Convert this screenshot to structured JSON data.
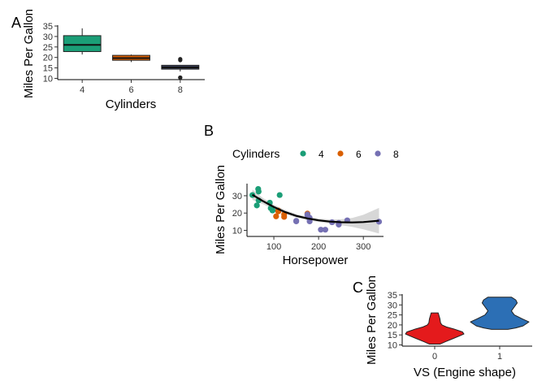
{
  "panels": {
    "a": {
      "label": "A"
    },
    "b": {
      "label": "B"
    },
    "c": {
      "label": "C"
    }
  },
  "chart_data": [
    {
      "type": "box",
      "panel": "A",
      "title": "",
      "xlabel": "Cylinders",
      "ylabel": "Miles Per Gallon",
      "ylim": [
        9.4,
        35.4
      ],
      "y_ticks": [
        10,
        15,
        20,
        25,
        30,
        35
      ],
      "categories": [
        "4",
        "6",
        "8"
      ],
      "boxes": [
        {
          "category": "4",
          "min": 21.4,
          "q1": 22.8,
          "median": 26.0,
          "q3": 30.4,
          "max": 33.9,
          "outliers": [],
          "color": "#1B9E77"
        },
        {
          "category": "6",
          "min": 17.8,
          "q1": 18.65,
          "median": 19.7,
          "q3": 21.0,
          "max": 21.4,
          "outliers": [],
          "color": "#D95F02"
        },
        {
          "category": "8",
          "min": 13.3,
          "q1": 14.4,
          "median": 15.2,
          "q3": 16.25,
          "max": 16.4,
          "outliers": [
            10.4,
            10.4,
            19.2,
            18.7
          ],
          "color": "#3A3F58"
        }
      ],
      "grid": false,
      "legend": "none"
    },
    {
      "type": "scatter",
      "panel": "B",
      "title": "",
      "xlabel": "Horsepower",
      "ylabel": "Miles Per Gallon",
      "xlim": [
        40,
        345
      ],
      "ylim": [
        6.5,
        37
      ],
      "x_ticks": [
        100,
        200,
        300
      ],
      "y_ticks": [
        10,
        20,
        30
      ],
      "legend_title": "Cylinders",
      "legend_position": "top",
      "series": [
        {
          "name": "4",
          "color": "#1B9E77",
          "points": [
            [
              93,
              22.8
            ],
            [
              62,
              24.4
            ],
            [
              95,
              22.8
            ],
            [
              66,
              32.4
            ],
            [
              52,
              30.4
            ],
            [
              65,
              33.9
            ],
            [
              97,
              21.5
            ],
            [
              66,
              27.3
            ],
            [
              91,
              26.0
            ],
            [
              113,
              30.4
            ],
            [
              109,
              21.4
            ]
          ]
        },
        {
          "name": "6",
          "color": "#D95F02",
          "points": [
            [
              110,
              21.0
            ],
            [
              110,
              21.0
            ],
            [
              110,
              21.4
            ],
            [
              105,
              18.1
            ],
            [
              123,
              19.2
            ],
            [
              123,
              17.8
            ],
            [
              175,
              19.7
            ]
          ]
        },
        {
          "name": "8",
          "color": "#7570B3",
          "points": [
            [
              175,
              18.7
            ],
            [
              245,
              14.3
            ],
            [
              180,
              16.4
            ],
            [
              180,
              17.3
            ],
            [
              180,
              15.2
            ],
            [
              205,
              10.4
            ],
            [
              215,
              10.4
            ],
            [
              230,
              14.7
            ],
            [
              150,
              15.5
            ],
            [
              150,
              15.2
            ],
            [
              245,
              13.3
            ],
            [
              175,
              19.2
            ],
            [
              264,
              15.8
            ],
            [
              335,
              15.0
            ]
          ]
        }
      ],
      "smooth": {
        "color": "#000000",
        "band_color": "#BDBDBD",
        "points": [
          [
            52,
            30.6
          ],
          [
            75,
            27.0
          ],
          [
            100,
            23.5
          ],
          [
            125,
            20.6
          ],
          [
            150,
            18.4
          ],
          [
            175,
            16.9
          ],
          [
            200,
            15.8
          ],
          [
            225,
            15.1
          ],
          [
            250,
            14.7
          ],
          [
            275,
            14.6
          ],
          [
            300,
            14.8
          ],
          [
            335,
            15.6
          ]
        ],
        "lower": [
          [
            52,
            27.6
          ],
          [
            75,
            25.2
          ],
          [
            100,
            22.2
          ],
          [
            125,
            19.4
          ],
          [
            150,
            17.4
          ],
          [
            175,
            15.9
          ],
          [
            200,
            14.8
          ],
          [
            225,
            13.9
          ],
          [
            250,
            13.0
          ],
          [
            275,
            12.0
          ],
          [
            300,
            10.6
          ],
          [
            335,
            8.2
          ]
        ],
        "upper": [
          [
            52,
            33.6
          ],
          [
            75,
            28.8
          ],
          [
            100,
            24.8
          ],
          [
            125,
            21.8
          ],
          [
            150,
            19.4
          ],
          [
            175,
            17.9
          ],
          [
            200,
            16.8
          ],
          [
            225,
            16.3
          ],
          [
            250,
            16.4
          ],
          [
            275,
            17.2
          ],
          [
            300,
            19.0
          ],
          [
            335,
            23.0
          ]
        ]
      },
      "grid": false
    },
    {
      "type": "violin",
      "panel": "C",
      "title": "",
      "xlabel": "VS (Engine shape)",
      "ylabel": "Miles Per Gallon",
      "ylim": [
        9.4,
        35.4
      ],
      "y_ticks": [
        10,
        15,
        20,
        25,
        30,
        35
      ],
      "categories": [
        "0",
        "1"
      ],
      "violins": [
        {
          "category": "0",
          "color": "#E41A1C",
          "profile": [
            [
              10.4,
              0.18
            ],
            [
              11.5,
              0.35
            ],
            [
              13,
              0.6
            ],
            [
              14.5,
              0.85
            ],
            [
              15.5,
              1.0
            ],
            [
              16.5,
              0.95
            ],
            [
              18,
              0.65
            ],
            [
              19,
              0.4
            ],
            [
              20,
              0.25
            ],
            [
              21,
              0.2
            ],
            [
              23,
              0.18
            ],
            [
              26,
              0.12
            ]
          ]
        },
        {
          "category": "1",
          "color": "#2C6FB5",
          "profile": [
            [
              17.8,
              0.28
            ],
            [
              18.5,
              0.55
            ],
            [
              19.5,
              0.8
            ],
            [
              21.5,
              1.0
            ],
            [
              23,
              0.78
            ],
            [
              25,
              0.5
            ],
            [
              27,
              0.4
            ],
            [
              29,
              0.5
            ],
            [
              31,
              0.6
            ],
            [
              32.5,
              0.55
            ],
            [
              33.9,
              0.4
            ]
          ]
        }
      ],
      "grid": false,
      "legend": "none"
    }
  ]
}
